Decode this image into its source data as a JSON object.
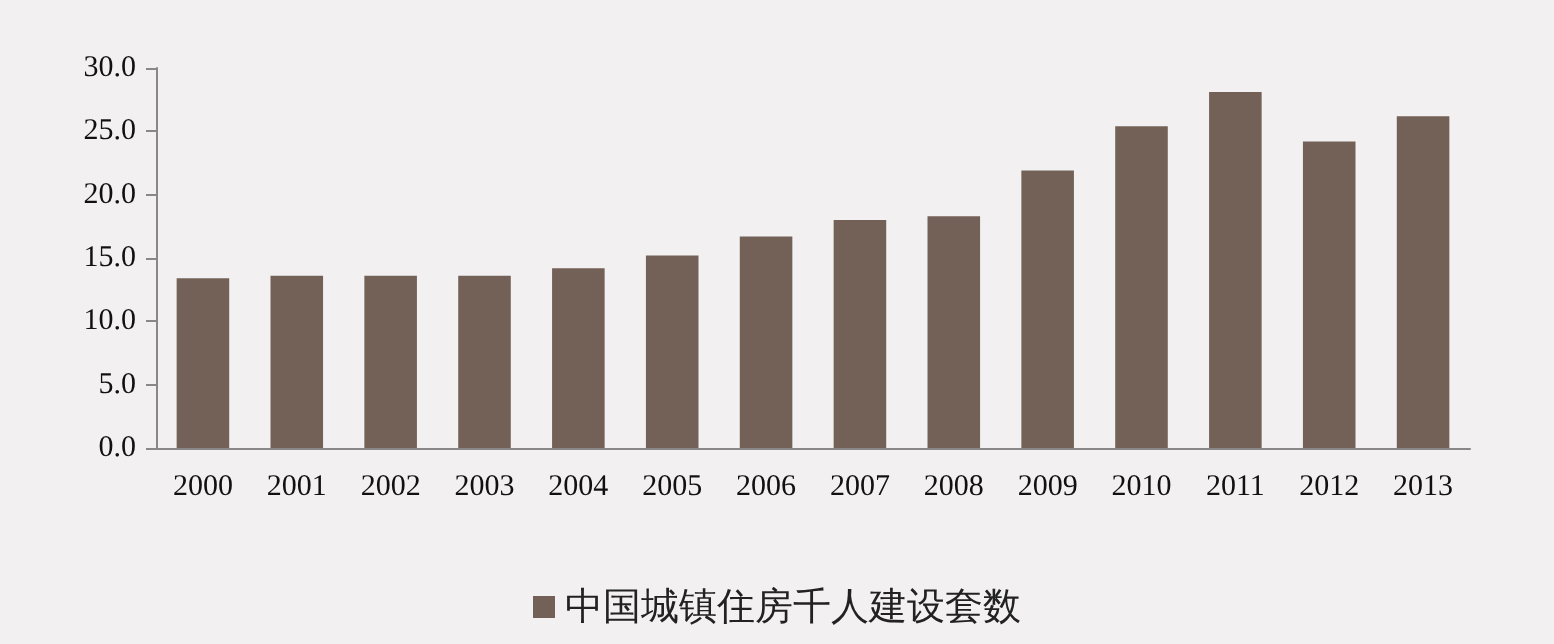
{
  "chart_data": {
    "type": "bar",
    "categories": [
      "2000",
      "2001",
      "2002",
      "2003",
      "2004",
      "2005",
      "2006",
      "2007",
      "2008",
      "2009",
      "2010",
      "2011",
      "2012",
      "2013"
    ],
    "series": [
      {
        "name": "中国城镇住房千人建设套数",
        "color": "#736158",
        "values": [
          13.4,
          13.6,
          13.6,
          13.6,
          14.2,
          15.2,
          16.7,
          18.0,
          18.3,
          21.9,
          25.4,
          28.1,
          24.2,
          26.2
        ]
      }
    ],
    "ylim": [
      0,
      30
    ],
    "yticks": [
      {
        "value": 0,
        "label": "0.0"
      },
      {
        "value": 5,
        "label": "5.0"
      },
      {
        "value": 10,
        "label": "10.0"
      },
      {
        "value": 15,
        "label": "15.0"
      },
      {
        "value": 20,
        "label": "20.0"
      },
      {
        "value": 25,
        "label": "25.0"
      },
      {
        "value": 30,
        "label": "30.0"
      }
    ],
    "grid": false,
    "legend": "bottom"
  }
}
